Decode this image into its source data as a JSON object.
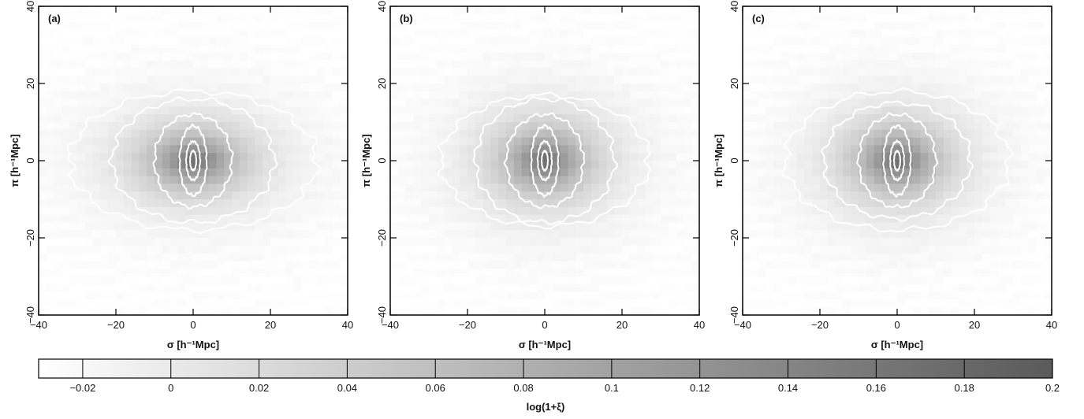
{
  "chart_data": [
    {
      "type": "heatmap",
      "panel_label": "(a)",
      "xlabel": "σ   [h⁻¹Mpc]",
      "ylabel": "π   [h⁻¹Mpc]",
      "xlim": [
        -40,
        40
      ],
      "ylim": [
        -40,
        40
      ],
      "xticks": [
        -40,
        -20,
        0,
        20,
        40
      ],
      "yticks": [
        -40,
        -20,
        0,
        20,
        40
      ],
      "peak_value": 0.2,
      "sigma_scale": 13,
      "pi_scale": 8,
      "contour_semi_axes": [
        [
          0.8,
          2.5
        ],
        [
          1.8,
          5
        ],
        [
          3.5,
          9
        ],
        [
          10,
          12
        ],
        [
          21,
          16
        ],
        [
          32,
          18
        ]
      ]
    },
    {
      "type": "heatmap",
      "panel_label": "(b)",
      "xlabel": "σ   [h⁻¹Mpc]",
      "ylabel": "π   [h⁻¹Mpc]",
      "xlim": [
        -40,
        40
      ],
      "ylim": [
        -40,
        40
      ],
      "xticks": [
        -40,
        -20,
        0,
        20,
        40
      ],
      "yticks": [
        -40,
        -20,
        0,
        20,
        40
      ],
      "peak_value": 0.2,
      "sigma_scale": 12,
      "pi_scale": 9,
      "contour_semi_axes": [
        [
          0.8,
          2.5
        ],
        [
          1.8,
          5
        ],
        [
          3.5,
          9
        ],
        [
          10,
          12
        ],
        [
          18,
          16
        ],
        [
          27,
          17
        ]
      ]
    },
    {
      "type": "heatmap",
      "panel_label": "(c)",
      "xlabel": "σ   [h⁻¹Mpc]",
      "ylabel": "π   [h⁻¹Mpc]",
      "xlim": [
        -40,
        40
      ],
      "ylim": [
        -40,
        40
      ],
      "xticks": [
        -40,
        -20,
        0,
        20,
        40
      ],
      "yticks": [
        -40,
        -20,
        0,
        20,
        40
      ],
      "peak_value": 0.2,
      "sigma_scale": 12,
      "pi_scale": 9,
      "contour_semi_axes": [
        [
          0.8,
          2.5
        ],
        [
          1.8,
          5
        ],
        [
          3.5,
          9
        ],
        [
          10,
          12
        ],
        [
          19,
          15
        ],
        [
          29,
          18
        ]
      ]
    }
  ],
  "colorbar": {
    "label": "log(1+ξ)",
    "range": [
      -0.03,
      0.2
    ],
    "ticks": [
      -0.02,
      0,
      0.02,
      0.04,
      0.06,
      0.08,
      0.1,
      0.12,
      0.14,
      0.16,
      0.18,
      0.2
    ],
    "tick_labels": [
      "−0.02",
      "0",
      "0.02",
      "0.04",
      "0.06",
      "0.08",
      "0.1",
      "0.12",
      "0.14",
      "0.16",
      "0.18",
      "0.2"
    ],
    "color_low": "#ffffff",
    "color_high": "#5a5a5a"
  },
  "contour_color": "#ffffff"
}
